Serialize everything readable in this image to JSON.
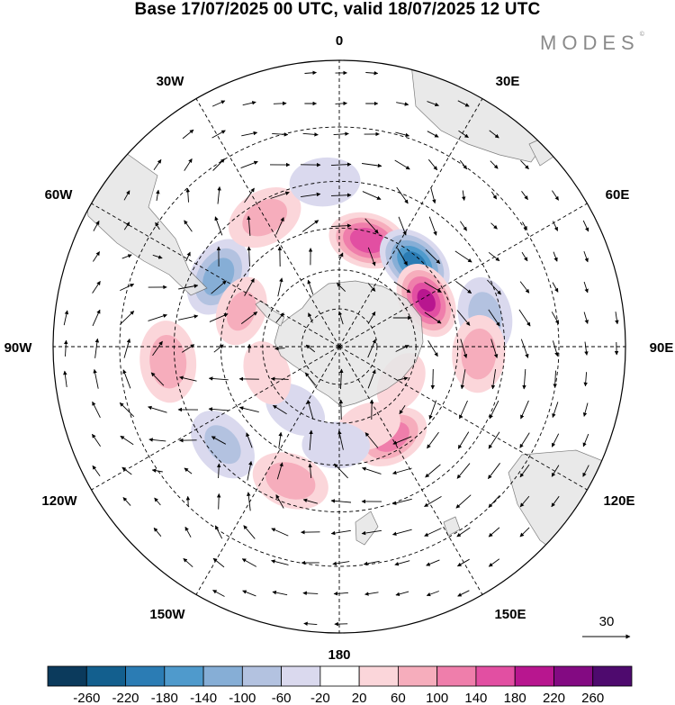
{
  "title": "Base 17/07/2025 00 UTC, valid 18/07/2025 12 UTC",
  "brand": "MODES",
  "brand_mark": "©",
  "longitude_labels": {
    "lon_0": "0",
    "lon_30e": "30E",
    "lon_60e": "60E",
    "lon_90e": "90E",
    "lon_120e": "120E",
    "lon_150e": "150E",
    "lon_180": "180",
    "lon_150w": "150W",
    "lon_120w": "120W",
    "lon_90w": "90W",
    "lon_60w": "60W",
    "lon_30w": "30W"
  },
  "projection": "south-polar-stereographic",
  "wind_reference": {
    "value": "30",
    "icon": "arrow-right-icon"
  },
  "colorbar": {
    "ticks": [
      "-260",
      "-220",
      "-180",
      "-140",
      "-100",
      "-60",
      "-20",
      "20",
      "60",
      "100",
      "140",
      "180",
      "220",
      "260"
    ],
    "colors": [
      "#0b3a5c",
      "#135f8e",
      "#2b7cb4",
      "#4f9acc",
      "#86aed6",
      "#b3c2e0",
      "#dad9ee",
      "#ffffff",
      "#fbd6da",
      "#f6adbc",
      "#ef7eab",
      "#e24fa2",
      "#b8168f",
      "#830a82",
      "#4e0a6e"
    ]
  },
  "anomaly_centers": [
    {
      "lon": 15,
      "lat": -48,
      "value": 180
    },
    {
      "lon": 42,
      "lat": -47,
      "value": -200
    },
    {
      "lon": 62,
      "lat": -52,
      "value": 190
    },
    {
      "lon": 78,
      "lat": -35,
      "value": -80
    },
    {
      "lon": 93,
      "lat": -38,
      "value": 90
    },
    {
      "lon": 150,
      "lat": -50,
      "value": 130
    },
    {
      "lon": 160,
      "lat": -57,
      "value": 60
    },
    {
      "lon": 182,
      "lat": -52,
      "value": -60
    },
    {
      "lon": 200,
      "lat": -37,
      "value": 90
    },
    {
      "lon": 230,
      "lat": -34,
      "value": -70
    },
    {
      "lon": 265,
      "lat": -28,
      "value": 90
    },
    {
      "lon": 300,
      "lat": -38,
      "value": -130
    },
    {
      "lon": 330,
      "lat": -35,
      "value": 80
    },
    {
      "lon": 355,
      "lat": -30,
      "value": -40
    },
    {
      "lon": 290,
      "lat": -50,
      "value": 70
    },
    {
      "lon": 215,
      "lat": -60,
      "value": -60
    },
    {
      "lon": 120,
      "lat": -62,
      "value": 50
    },
    {
      "lon": 250,
      "lat": -60,
      "value": 60
    }
  ]
}
